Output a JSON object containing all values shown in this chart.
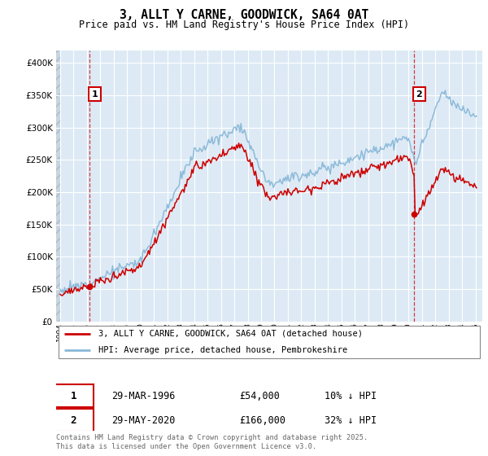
{
  "title": "3, ALLT Y CARNE, GOODWICK, SA64 0AT",
  "subtitle": "Price paid vs. HM Land Registry's House Price Index (HPI)",
  "ylim": [
    0,
    420000
  ],
  "yticks": [
    0,
    50000,
    100000,
    150000,
    200000,
    250000,
    300000,
    350000,
    400000
  ],
  "ytick_labels": [
    "£0",
    "£50K",
    "£100K",
    "£150K",
    "£200K",
    "£250K",
    "£300K",
    "£350K",
    "£400K"
  ],
  "xlim_start": 1993.7,
  "xlim_end": 2025.5,
  "sale1_x": 1996.21,
  "sale1_y": 54000,
  "sale1_label": "1",
  "sale2_x": 2020.42,
  "sale2_y": 166000,
  "sale2_label": "2",
  "hpi_color": "#89b8d8",
  "price_color": "#cc0000",
  "bg_color": "#ddeaf5",
  "legend_label1": "3, ALLT Y CARNE, GOODWICK, SA64 0AT (detached house)",
  "legend_label2": "HPI: Average price, detached house, Pembrokeshire",
  "note1_label": "1",
  "note1_date": "29-MAR-1996",
  "note1_price": "£54,000",
  "note1_hpi": "10% ↓ HPI",
  "note2_label": "2",
  "note2_date": "29-MAY-2020",
  "note2_price": "£166,000",
  "note2_hpi": "32% ↓ HPI",
  "footer": "Contains HM Land Registry data © Crown copyright and database right 2025.\nThis data is licensed under the Open Government Licence v3.0."
}
